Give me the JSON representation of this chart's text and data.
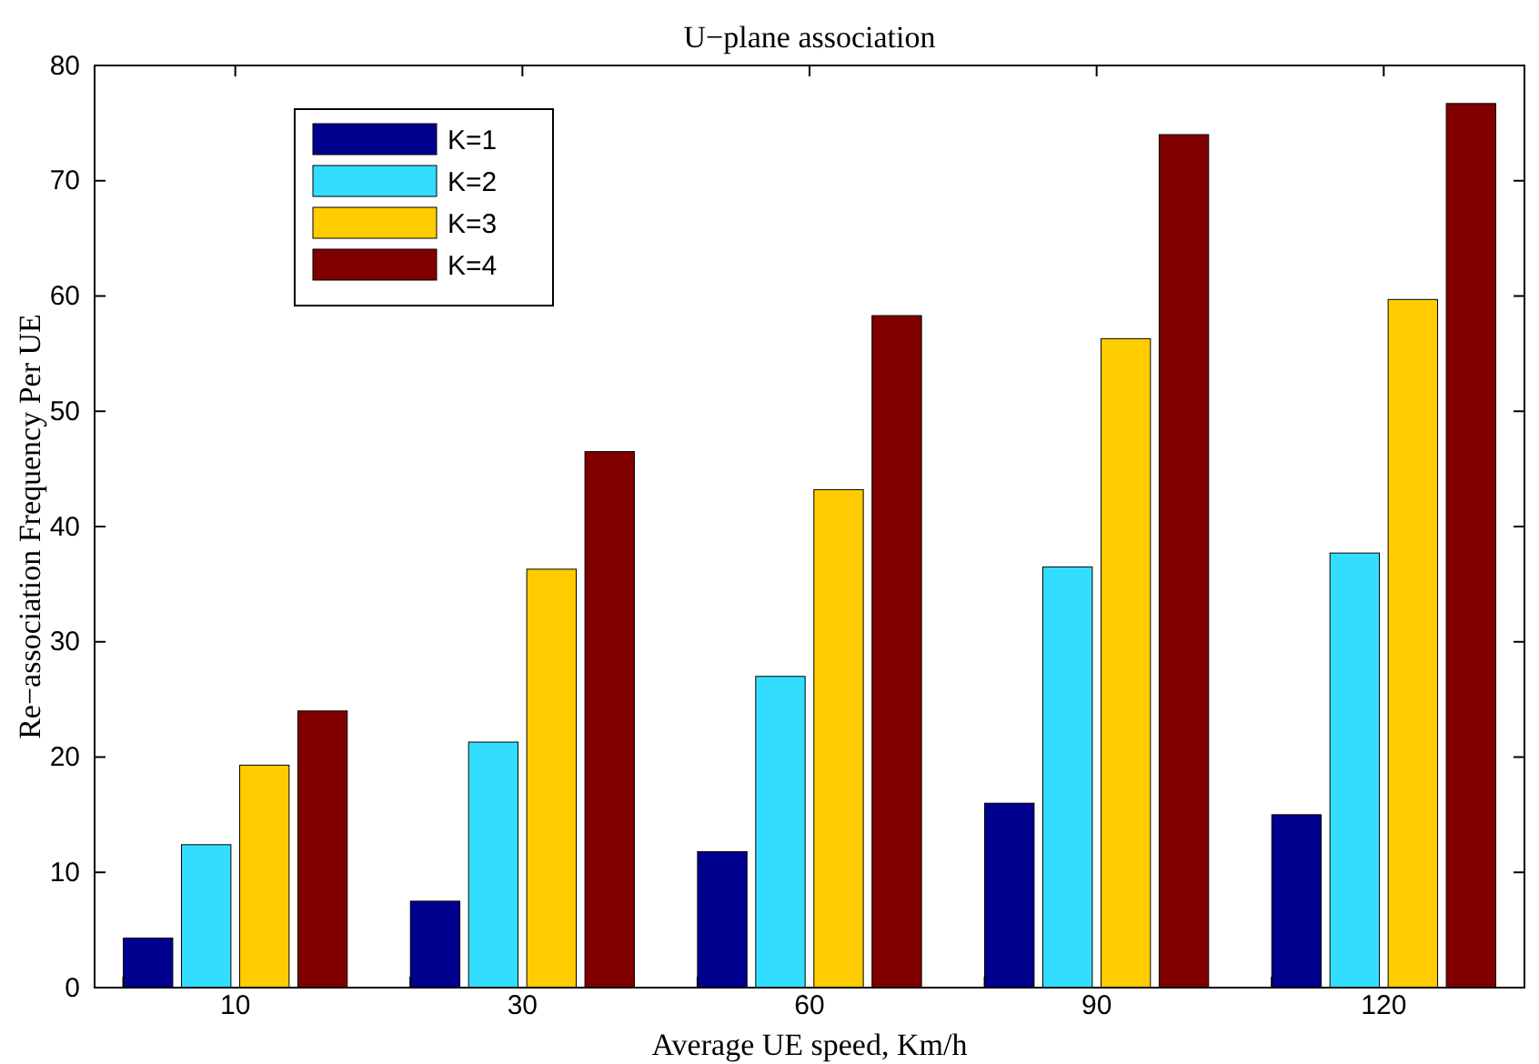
{
  "chart_data": {
    "type": "bar",
    "title": "U−plane association",
    "xlabel": "Average UE speed, Km/h",
    "ylabel": "Re−association Frequency Per UE",
    "categories": [
      "10",
      "30",
      "60",
      "90",
      "120"
    ],
    "series": [
      {
        "name": "K=1",
        "color": "#00008f",
        "values": [
          4.3,
          7.5,
          11.8,
          16,
          15
        ]
      },
      {
        "name": "K=2",
        "color": "#33ddff",
        "values": [
          12.4,
          21.3,
          27,
          36.5,
          37.7
        ]
      },
      {
        "name": "K=3",
        "color": "#ffcc00",
        "values": [
          19.3,
          36.3,
          43.2,
          56.3,
          59.7
        ]
      },
      {
        "name": "K=4",
        "color": "#800000",
        "values": [
          24,
          46.5,
          58.3,
          74,
          76.7
        ]
      }
    ],
    "ylim": [
      0,
      80
    ],
    "yticks": [
      0,
      10,
      20,
      30,
      40,
      50,
      60,
      70,
      80
    ],
    "grid": false,
    "legend": "top left"
  }
}
